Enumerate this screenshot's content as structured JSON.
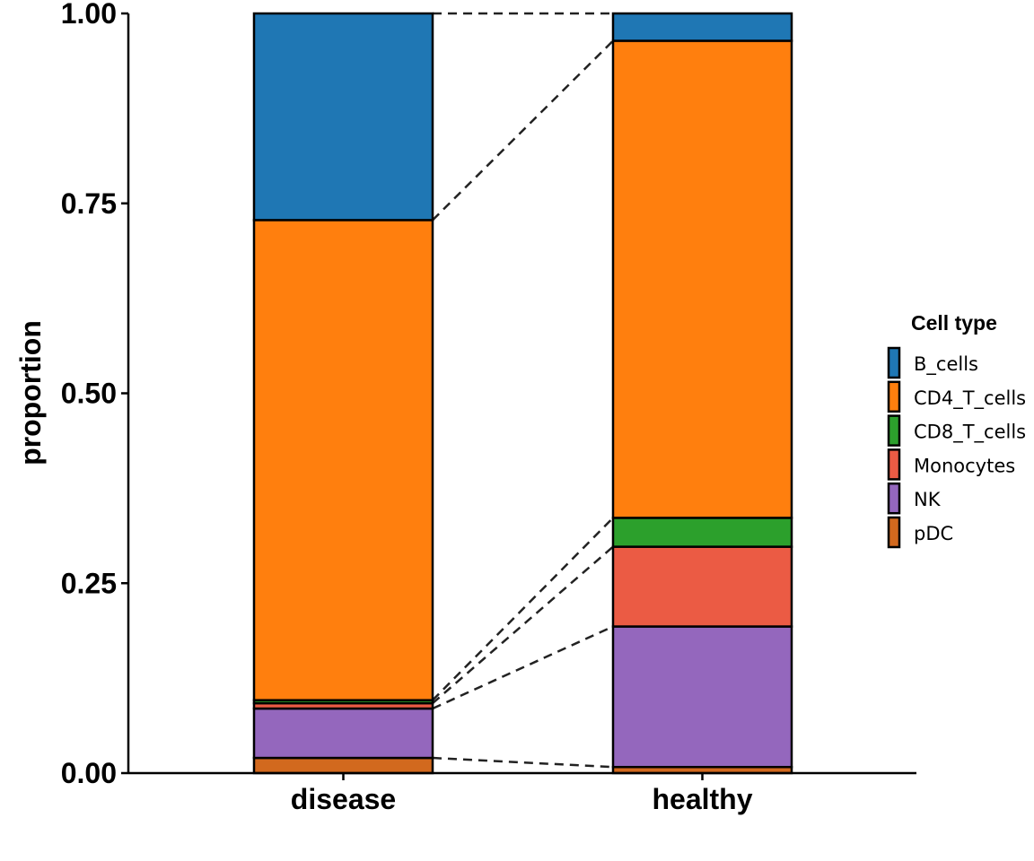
{
  "chart_data": {
    "type": "bar",
    "stacked": true,
    "categories": [
      "disease",
      "healthy"
    ],
    "ylabel": "proportion",
    "xlabel": "",
    "ylim": [
      0,
      1
    ],
    "yticks": [
      "0.00",
      "0.25",
      "0.50",
      "0.75",
      "1.00"
    ],
    "legend": {
      "title": "Cell type",
      "position": "right"
    },
    "connectors": "dashed lines between matching segment boundaries",
    "series": [
      {
        "name": "pDC",
        "color": "#d2691e",
        "values": [
          0.02,
          0.008
        ]
      },
      {
        "name": "NK",
        "color": "#9467bd",
        "values": [
          0.065,
          0.185
        ]
      },
      {
        "name": "Monocytes",
        "color": "#eb5b44",
        "values": [
          0.007,
          0.105
        ]
      },
      {
        "name": "CD8_T_cells",
        "color": "#2ca02c",
        "values": [
          0.004,
          0.038
        ]
      },
      {
        "name": "CD4_T_cells",
        "color": "#ff7f0e",
        "values": [
          0.632,
          0.628
        ]
      },
      {
        "name": "B_cells",
        "color": "#1f77b4",
        "values": [
          0.272,
          0.036
        ]
      }
    ],
    "legend_order": [
      "B_cells",
      "CD4_T_cells",
      "CD8_T_cells",
      "Monocytes",
      "NK",
      "pDC"
    ]
  }
}
